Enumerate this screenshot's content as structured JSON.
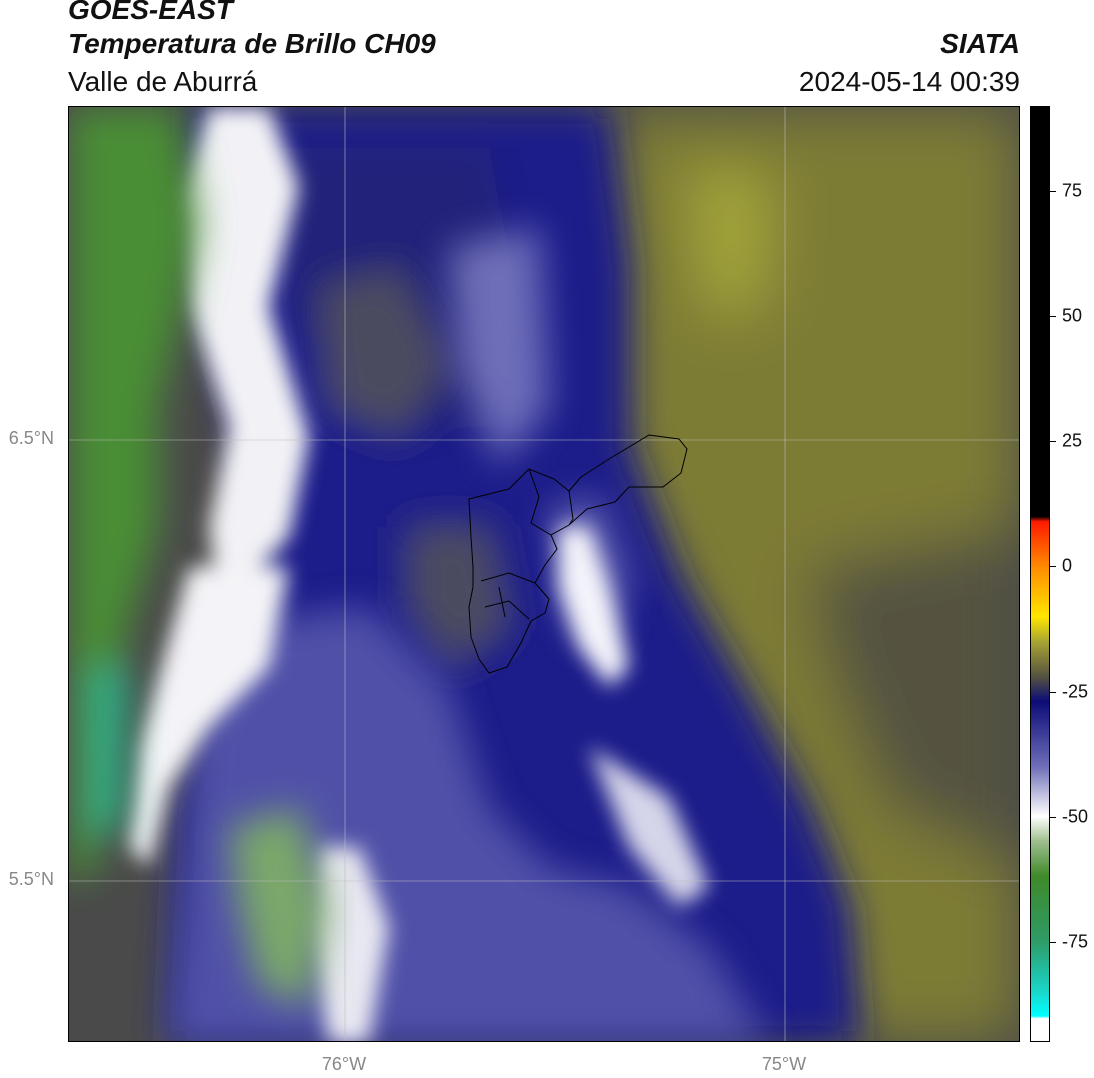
{
  "header": {
    "satellite": "GOES-EAST",
    "product": "Temperatura de Brillo CH09",
    "region": "Valle de Aburrá",
    "organization": "SIATA",
    "timestamp": "2024-05-14 00:39"
  },
  "map": {
    "lat_labels": [
      "6.5°N",
      "5.5°N"
    ],
    "lon_labels": [
      "76°W",
      "75°W"
    ]
  },
  "colorbar": {
    "tick_labels": [
      "75",
      "50",
      "25",
      "0",
      "-25",
      "-50",
      "-75"
    ],
    "tick_values": [
      75,
      50,
      25,
      0,
      -25,
      -50,
      -75
    ],
    "range": [
      -95,
      92
    ]
  },
  "colors": {
    "dark_blue": "#0c0c78",
    "olive": "#87852f",
    "dark_gray": "#4a4a4a",
    "green": "#3f8a2a"
  }
}
